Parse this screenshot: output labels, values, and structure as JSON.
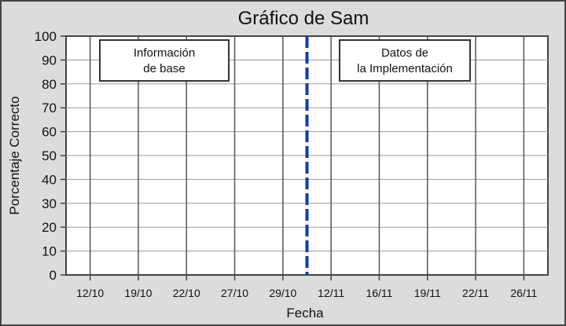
{
  "chart_data": {
    "type": "line",
    "title": "Gráfico de Sam",
    "xlabel": "Fecha",
    "ylabel": "Porcentaje Correcto",
    "categories": [
      "12/10",
      "19/10",
      "22/10",
      "27/10",
      "29/10",
      "12/11",
      "16/11",
      "19/11",
      "22/11",
      "26/11"
    ],
    "series": [],
    "ylim": [
      0,
      100
    ],
    "y_ticks": [
      0,
      10,
      20,
      30,
      40,
      50,
      60,
      70,
      80,
      90,
      100
    ],
    "grid": {
      "horizontal": true,
      "vertical": true
    },
    "phase_change_after_index": 4,
    "phase_change_style": "dashed-blue-line",
    "phase_labels": [
      {
        "lines": [
          "Información",
          "de base"
        ]
      },
      {
        "lines": [
          "Datos de",
          "la Implementación"
        ]
      }
    ],
    "colors": {
      "phase_line": "#0b3fa0",
      "grid_line": "#9a9a9a",
      "vertical_grid_line": "#555555",
      "background": "#dcdcdc",
      "plot_background": "#ffffff",
      "frame": "#444444"
    }
  }
}
